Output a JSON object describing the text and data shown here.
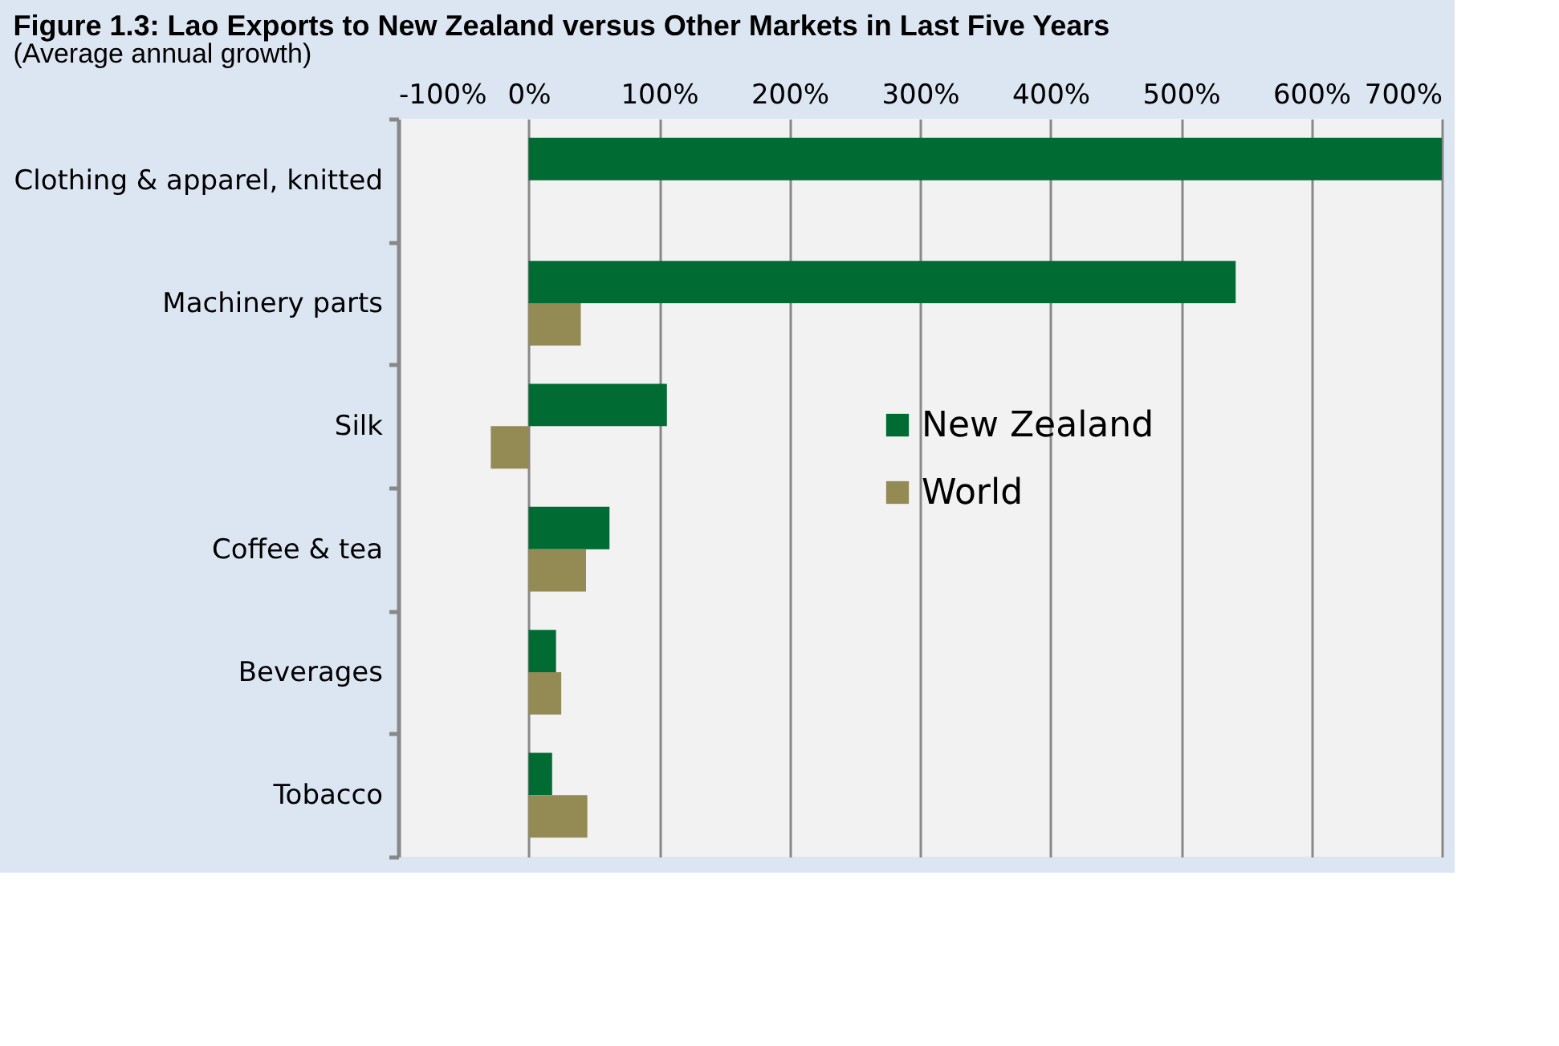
{
  "chart_data": {
    "type": "bar",
    "orientation": "horizontal",
    "title": "Figure 1.3: Lao Exports to New Zealand versus Other Markets in Last Five Years",
    "subtitle": "(Average annual growth)",
    "categories": [
      "Clothing & apparel, knitted",
      "Machinery parts",
      "Silk",
      "Coffee & tea",
      "Beverages",
      "Tobacco"
    ],
    "series": [
      {
        "name": "New Zealand",
        "color": "#006b33",
        "values": [
          700,
          542,
          106,
          62,
          21,
          18
        ]
      },
      {
        "name": "World",
        "color": "#948a54",
        "values": [
          null,
          40,
          -29,
          44,
          25,
          45
        ]
      }
    ],
    "xlim": [
      -100,
      700
    ],
    "xticks": [
      {
        "value": -100,
        "label": "-100%"
      },
      {
        "value": 0,
        "label": "0%"
      },
      {
        "value": 100,
        "label": "100%"
      },
      {
        "value": 200,
        "label": "200%"
      },
      {
        "value": 300,
        "label": "300%"
      },
      {
        "value": 400,
        "label": "400%"
      },
      {
        "value": 500,
        "label": "500%"
      },
      {
        "value": 600,
        "label": "600%"
      },
      {
        "value": 700,
        "label": "700%"
      }
    ],
    "grid": "x",
    "legend": "right"
  }
}
